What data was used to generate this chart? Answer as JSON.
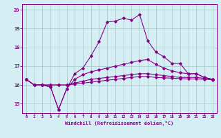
{
  "xlabel": "Windchill (Refroidissement éolien,°C)",
  "ylabel": "",
  "background_color": "#d4eef4",
  "grid_color": "#aacccc",
  "line_color": "#880088",
  "xlim": [
    -0.5,
    23.5
  ],
  "ylim": [
    14.5,
    20.3
  ],
  "yticks": [
    15,
    16,
    17,
    18,
    19,
    20
  ],
  "xticks": [
    0,
    1,
    2,
    3,
    4,
    5,
    6,
    7,
    8,
    9,
    10,
    11,
    12,
    13,
    14,
    15,
    16,
    17,
    18,
    19,
    20,
    21,
    22,
    23
  ],
  "hours": [
    0,
    1,
    2,
    3,
    4,
    5,
    6,
    7,
    8,
    9,
    10,
    11,
    12,
    13,
    14,
    15,
    16,
    17,
    18,
    19,
    20,
    21,
    22,
    23
  ],
  "line1": [
    16.3,
    16.0,
    16.0,
    15.9,
    14.7,
    15.8,
    16.6,
    16.9,
    17.55,
    18.3,
    19.35,
    19.4,
    19.55,
    19.45,
    19.75,
    18.35,
    17.75,
    17.5,
    17.15,
    17.15,
    16.6,
    16.6,
    16.4,
    16.3
  ],
  "line2": [
    16.3,
    16.0,
    16.0,
    15.9,
    14.7,
    15.8,
    16.3,
    16.55,
    16.7,
    16.8,
    16.9,
    17.0,
    17.1,
    17.2,
    17.3,
    17.35,
    17.1,
    16.9,
    16.75,
    16.65,
    16.6,
    16.6,
    16.4,
    16.3
  ],
  "line3": [
    16.3,
    16.0,
    16.0,
    16.0,
    16.0,
    16.0,
    16.1,
    16.2,
    16.3,
    16.35,
    16.4,
    16.45,
    16.5,
    16.55,
    16.6,
    16.6,
    16.55,
    16.5,
    16.45,
    16.4,
    16.4,
    16.4,
    16.35,
    16.3
  ],
  "line4": [
    16.3,
    16.0,
    16.0,
    16.0,
    16.0,
    16.0,
    16.05,
    16.1,
    16.15,
    16.2,
    16.25,
    16.3,
    16.35,
    16.4,
    16.45,
    16.45,
    16.4,
    16.38,
    16.36,
    16.34,
    16.32,
    16.32,
    16.3,
    16.28
  ]
}
